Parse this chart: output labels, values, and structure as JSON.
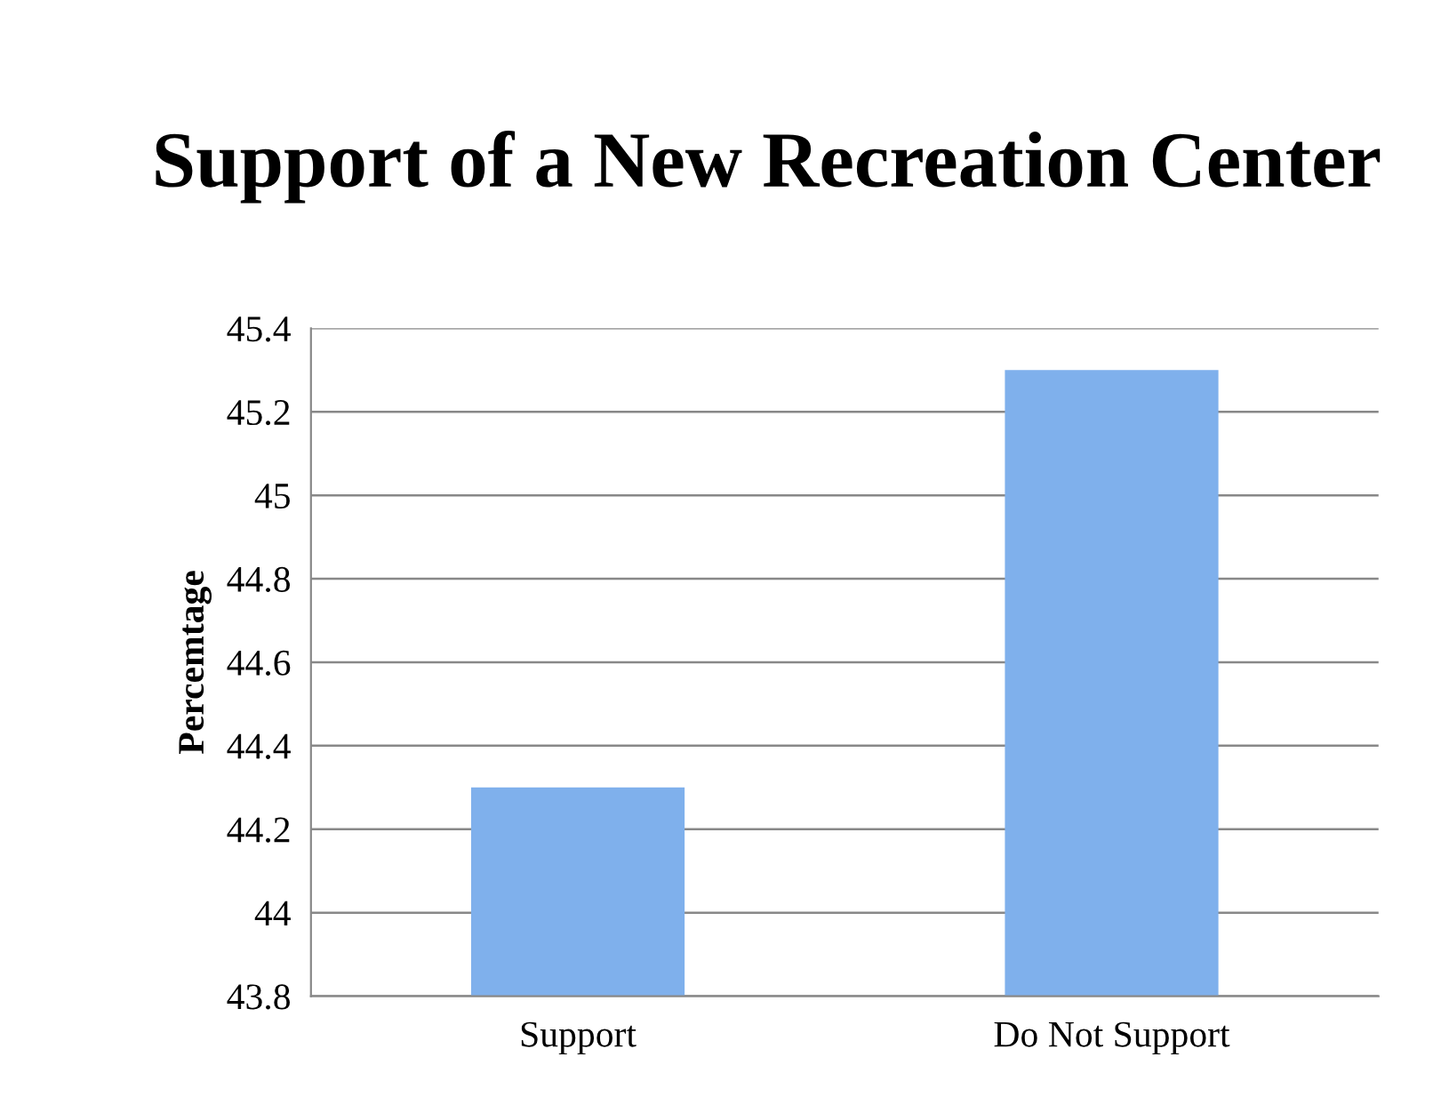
{
  "chart_data": {
    "type": "bar",
    "title": "Support of a New Recreation Center",
    "ylabel": "Percemtage",
    "categories": [
      "Support",
      "Do Not Support"
    ],
    "series": [
      {
        "color": "#7fb0ec",
        "values": [
          44.3,
          45.3
        ]
      }
    ],
    "ylim": [
      43.8,
      45.4
    ],
    "yticks": [
      43.8,
      44,
      44.2,
      44.4,
      44.6,
      44.8,
      45,
      45.2,
      45.4
    ],
    "grid": "y",
    "legend": false
  }
}
